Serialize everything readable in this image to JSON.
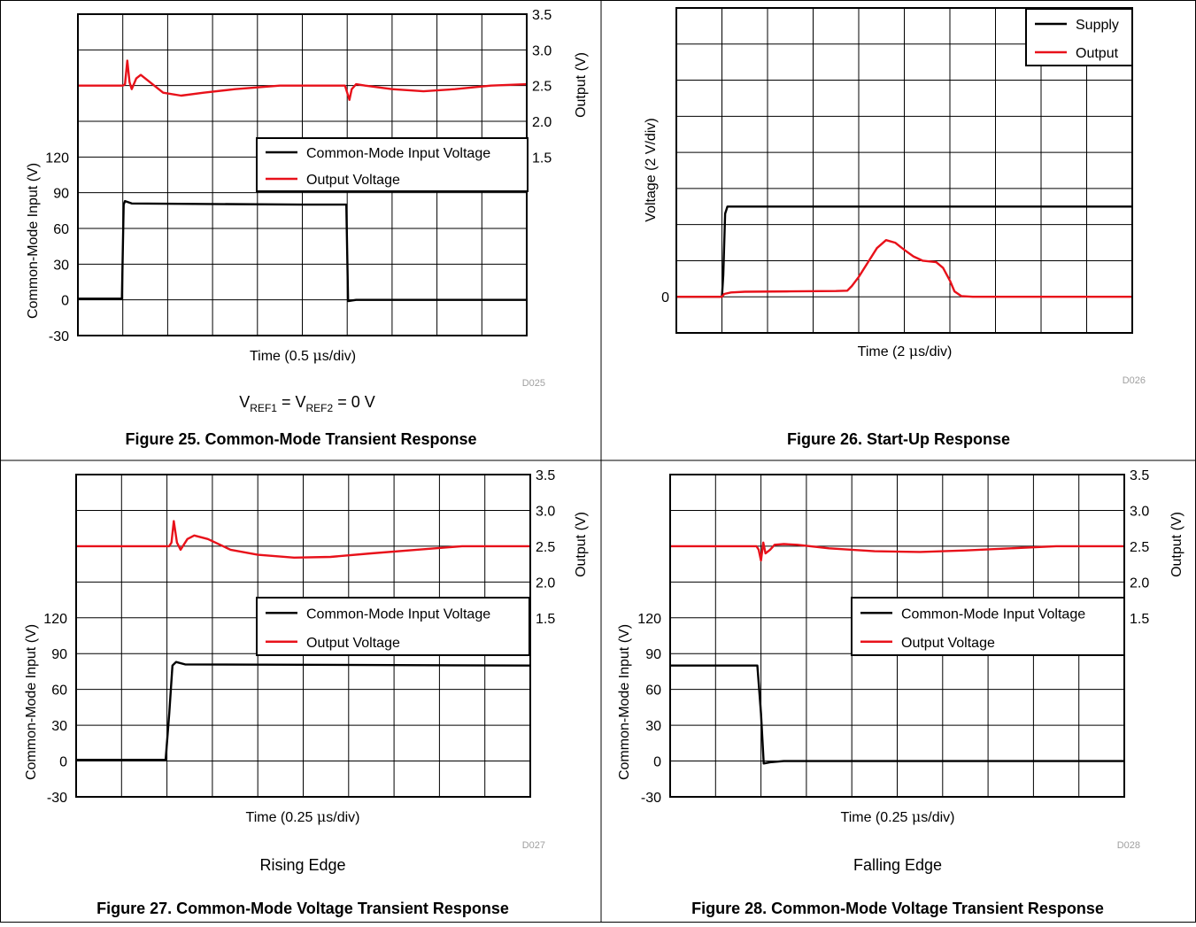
{
  "colors": {
    "black": "#000000",
    "red": "#e8111a",
    "grid": "#000000"
  },
  "panels": [
    {
      "caption": "Figure 25. Common-Mode Transient Response",
      "code": "D025",
      "condition": {
        "text": "V",
        "sub1": "REF1",
        "mid": " = V",
        "sub2": "REF2",
        "end": " = 0 V"
      },
      "chart_data": {
        "type": "line",
        "xlabel": {
          "pre": "Time (0.5 ",
          "mu": "μ",
          "post": "s/div)"
        },
        "ylabel_left": "Common-Mode Input (V)",
        "ylabel_right": "Output (V)",
        "left_ticks": [
          "120",
          "90",
          "60",
          "30",
          "0",
          "-30"
        ],
        "right_ticks": [
          "3.5",
          "3.0",
          "2.5",
          "2.0",
          "1.5"
        ],
        "xlim_div": [
          0,
          10
        ],
        "ylim_left": [
          -30,
          240
        ],
        "ylim_right": [
          0.5,
          3.5
        ],
        "legend": {
          "position": "right-middle",
          "entries": [
            "Common-Mode Input Voltage",
            "Output Voltage"
          ]
        },
        "series": [
          {
            "name": "Common-Mode Input Voltage",
            "color": "black",
            "axis": "left",
            "points": [
              [
                0,
                1
              ],
              [
                0.98,
                1
              ],
              [
                1.02,
                80
              ],
              [
                1.05,
                83
              ],
              [
                1.2,
                81
              ],
              [
                5,
                80
              ],
              [
                5.98,
                80
              ],
              [
                6.02,
                -1
              ],
              [
                6.2,
                0
              ],
              [
                10,
                0
              ]
            ]
          },
          {
            "name": "Output Voltage",
            "color": "red",
            "axis": "right",
            "points": [
              [
                0,
                2.5
              ],
              [
                1,
                2.5
              ],
              [
                1.05,
                2.52
              ],
              [
                1.1,
                2.85
              ],
              [
                1.15,
                2.55
              ],
              [
                1.2,
                2.45
              ],
              [
                1.3,
                2.6
              ],
              [
                1.4,
                2.65
              ],
              [
                1.6,
                2.55
              ],
              [
                1.9,
                2.4
              ],
              [
                2.3,
                2.36
              ],
              [
                2.8,
                2.4
              ],
              [
                3.5,
                2.45
              ],
              [
                4.5,
                2.5
              ],
              [
                5.5,
                2.5
              ],
              [
                5.95,
                2.5
              ],
              [
                6,
                2.4
              ],
              [
                6.05,
                2.3
              ],
              [
                6.1,
                2.45
              ],
              [
                6.2,
                2.52
              ],
              [
                6.4,
                2.5
              ],
              [
                7,
                2.45
              ],
              [
                7.7,
                2.42
              ],
              [
                8.4,
                2.45
              ],
              [
                9.2,
                2.5
              ],
              [
                10,
                2.52
              ]
            ]
          }
        ]
      }
    },
    {
      "caption": "Figure 26. Start-Up Response",
      "code": "D026",
      "chart_data": {
        "type": "line",
        "xlabel": {
          "pre": "Time (2 ",
          "mu": "μ",
          "post": "s/div)"
        },
        "ylabel_left": "Voltage (2 V/div)",
        "left_ticks": [
          "0"
        ],
        "xlim_div": [
          0,
          10
        ],
        "ylim_div": [
          -1,
          7
        ],
        "legend": {
          "position": "top-right",
          "entries": [
            "Supply",
            "Output"
          ]
        },
        "series": [
          {
            "name": "Supply",
            "color": "black",
            "points": [
              [
                0,
                0
              ],
              [
                1,
                0
              ],
              [
                1.03,
                0.6
              ],
              [
                1.07,
                2.3
              ],
              [
                1.12,
                2.5
              ],
              [
                10,
                2.5
              ]
            ]
          },
          {
            "name": "Output",
            "color": "red",
            "points": [
              [
                0,
                0
              ],
              [
                1,
                0
              ],
              [
                1.05,
                0.08
              ],
              [
                1.2,
                0.12
              ],
              [
                1.5,
                0.14
              ],
              [
                2.5,
                0.15
              ],
              [
                3.5,
                0.16
              ],
              [
                3.75,
                0.17
              ],
              [
                3.85,
                0.3
              ],
              [
                4,
                0.55
              ],
              [
                4.2,
                0.95
              ],
              [
                4.4,
                1.35
              ],
              [
                4.6,
                1.57
              ],
              [
                4.8,
                1.5
              ],
              [
                5,
                1.3
              ],
              [
                5.2,
                1.12
              ],
              [
                5.4,
                1.0
              ],
              [
                5.7,
                0.96
              ],
              [
                5.85,
                0.8
              ],
              [
                6,
                0.45
              ],
              [
                6.1,
                0.15
              ],
              [
                6.25,
                0.02
              ],
              [
                6.5,
                0
              ],
              [
                10,
                0
              ]
            ]
          }
        ]
      }
    },
    {
      "caption": "Figure 27. Common-Mode Voltage Transient Response",
      "code": "D027",
      "condition_text": "Rising Edge",
      "chart_data": {
        "type": "line",
        "xlabel": {
          "pre": "Time (0.25 ",
          "mu": "μ",
          "post": "s/div)"
        },
        "ylabel_left": "Common-Mode Input (V)",
        "ylabel_right": "Output (V)",
        "left_ticks": [
          "120",
          "90",
          "60",
          "30",
          "0",
          "-30"
        ],
        "right_ticks": [
          "3.5",
          "3.0",
          "2.5",
          "2.0",
          "1.5"
        ],
        "xlim_div": [
          0,
          10
        ],
        "ylim_left": [
          -30,
          240
        ],
        "ylim_right": [
          0.5,
          3.5
        ],
        "legend": {
          "position": "right-middle",
          "entries": [
            "Common-Mode Input Voltage",
            "Output Voltage"
          ]
        },
        "series": [
          {
            "name": "Common-Mode Input Voltage",
            "color": "black",
            "axis": "left",
            "points": [
              [
                0,
                1
              ],
              [
                1.97,
                1
              ],
              [
                2.05,
                40
              ],
              [
                2.12,
                80
              ],
              [
                2.2,
                83
              ],
              [
                2.4,
                81
              ],
              [
                10,
                80
              ]
            ]
          },
          {
            "name": "Output Voltage",
            "color": "red",
            "axis": "right",
            "points": [
              [
                0,
                2.5
              ],
              [
                2.05,
                2.5
              ],
              [
                2.1,
                2.55
              ],
              [
                2.15,
                2.85
              ],
              [
                2.22,
                2.55
              ],
              [
                2.3,
                2.45
              ],
              [
                2.45,
                2.6
              ],
              [
                2.6,
                2.65
              ],
              [
                2.9,
                2.6
              ],
              [
                3.4,
                2.45
              ],
              [
                4,
                2.38
              ],
              [
                4.8,
                2.34
              ],
              [
                5.6,
                2.35
              ],
              [
                6.5,
                2.4
              ],
              [
                7.5,
                2.45
              ],
              [
                8.5,
                2.5
              ],
              [
                10,
                2.5
              ]
            ]
          }
        ]
      }
    },
    {
      "caption": "Figure 28. Common-Mode Voltage Transient Response",
      "code": "D028",
      "condition_text": "Falling Edge",
      "chart_data": {
        "type": "line",
        "xlabel": {
          "pre": "Time (0.25 ",
          "mu": "μ",
          "post": "s/div)"
        },
        "ylabel_left": "Common-Mode Input (V)",
        "ylabel_right": "Output (V)",
        "left_ticks": [
          "120",
          "90",
          "60",
          "30",
          "0",
          "-30"
        ],
        "right_ticks": [
          "3.5",
          "3.0",
          "2.5",
          "2.0",
          "1.5"
        ],
        "xlim_div": [
          0,
          10
        ],
        "ylim_left": [
          -30,
          240
        ],
        "ylim_right": [
          0.5,
          3.5
        ],
        "legend": {
          "position": "right-middle",
          "entries": [
            "Common-Mode Input Voltage",
            "Output Voltage"
          ]
        },
        "series": [
          {
            "name": "Common-Mode Input Voltage",
            "color": "black",
            "axis": "left",
            "points": [
              [
                0,
                80
              ],
              [
                1.92,
                80
              ],
              [
                2.0,
                40
              ],
              [
                2.06,
                -2
              ],
              [
                2.2,
                -1
              ],
              [
                2.5,
                0
              ],
              [
                10,
                0
              ]
            ]
          },
          {
            "name": "Output Voltage",
            "color": "red",
            "axis": "right",
            "points": [
              [
                0,
                2.5
              ],
              [
                1.9,
                2.5
              ],
              [
                1.95,
                2.45
              ],
              [
                2.0,
                2.3
              ],
              [
                2.05,
                2.55
              ],
              [
                2.1,
                2.4
              ],
              [
                2.2,
                2.45
              ],
              [
                2.3,
                2.52
              ],
              [
                2.5,
                2.53
              ],
              [
                2.8,
                2.52
              ],
              [
                3.5,
                2.47
              ],
              [
                4.5,
                2.43
              ],
              [
                5.5,
                2.42
              ],
              [
                6.5,
                2.44
              ],
              [
                7.5,
                2.47
              ],
              [
                8.5,
                2.5
              ],
              [
                10,
                2.5
              ]
            ]
          }
        ]
      }
    }
  ]
}
